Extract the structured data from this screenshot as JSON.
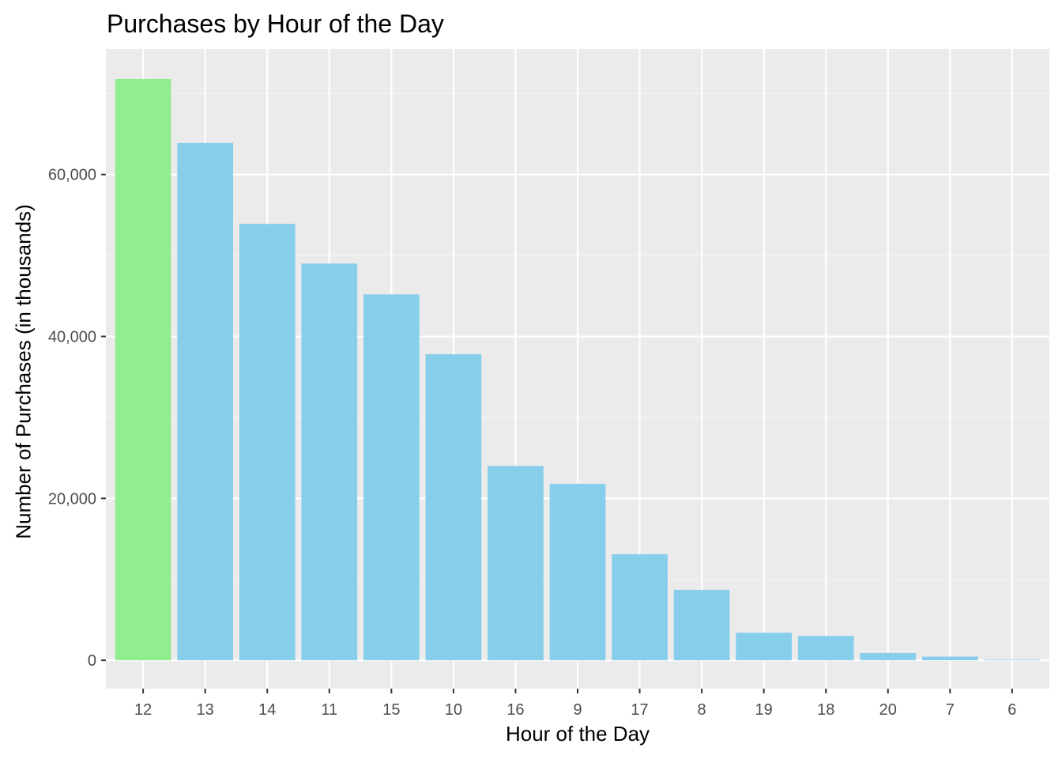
{
  "chart_data": {
    "type": "bar",
    "title": "Purchases by Hour of the Day",
    "xlabel": "Hour of the Day",
    "ylabel": "Number of Purchases (in thousands)",
    "categories": [
      "12",
      "13",
      "14",
      "11",
      "15",
      "10",
      "16",
      "9",
      "17",
      "8",
      "19",
      "18",
      "20",
      "7",
      "6"
    ],
    "values": [
      71800,
      63900,
      53900,
      49000,
      45200,
      37800,
      24000,
      21800,
      13100,
      8700,
      3400,
      3000,
      900,
      450,
      80
    ],
    "highlight_index": 0,
    "ylim": [
      -3500,
      75500
    ],
    "yticks": [
      0,
      20000,
      40000,
      60000
    ],
    "ytick_labels": [
      "0",
      "20,000",
      "40,000",
      "60,000"
    ],
    "grid": true,
    "colors": {
      "bar": "#87CEEB",
      "highlight": "#90EE90",
      "panel_background": "#EBEBEB",
      "grid_major": "#FFFFFF",
      "grid_minor": "#F5F5F5",
      "tick_text": "#4D4D4D",
      "tick_mark": "#333333"
    }
  }
}
